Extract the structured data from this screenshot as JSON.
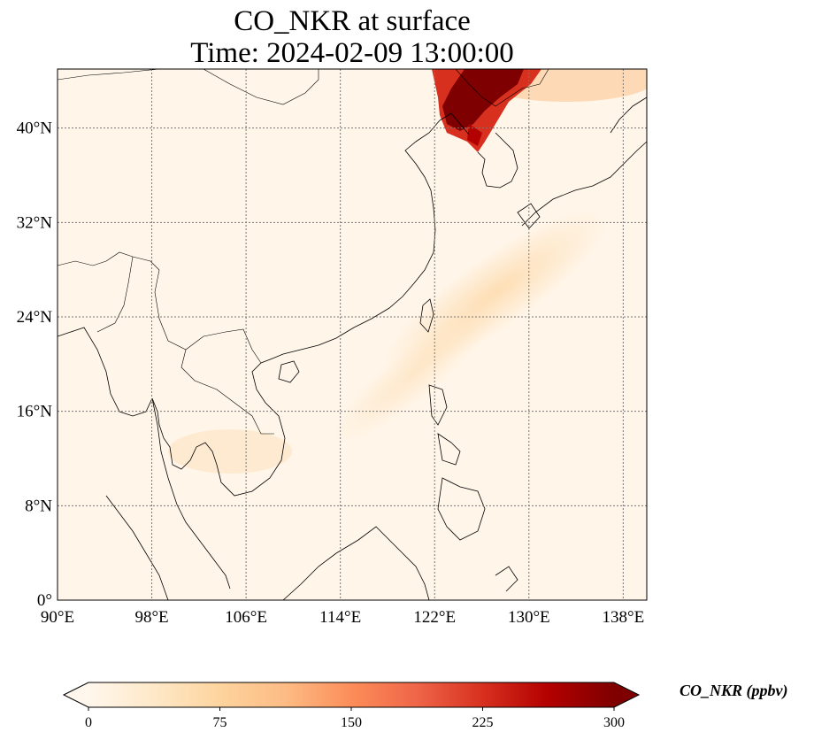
{
  "map": {
    "title_line1": "CO_NKR at surface",
    "title_line2": "Time: 2024-02-09 13:00:00",
    "variable": "CO_NKR",
    "level": "surface",
    "time": "2024-02-09 13:00:00",
    "extent": {
      "lon_min": 90,
      "lon_max": 140,
      "lat_min": 0,
      "lat_max": 45
    },
    "lon_ticks": [
      {
        "value": 90,
        "label": "90°E"
      },
      {
        "value": 98,
        "label": "98°E"
      },
      {
        "value": 106,
        "label": "106°E"
      },
      {
        "value": 114,
        "label": "114°E"
      },
      {
        "value": 122,
        "label": "122°E"
      },
      {
        "value": 130,
        "label": "130°E"
      },
      {
        "value": 138,
        "label": "138°E"
      }
    ],
    "lat_ticks": [
      {
        "value": 0,
        "label": "0°"
      },
      {
        "value": 8,
        "label": "8°N"
      },
      {
        "value": 16,
        "label": "16°N"
      },
      {
        "value": 24,
        "label": "24°N"
      },
      {
        "value": 32,
        "label": "32°N"
      },
      {
        "value": 40,
        "label": "40°N"
      }
    ],
    "gridlines": true,
    "colormap": "OrRd",
    "background_color": "#fff5e8",
    "plume_color_high": "#7f0000",
    "plume_color_mid": "#d7301f",
    "coast_color": "#000000"
  },
  "colorbar": {
    "label": "CO_NKR (ppbv)",
    "vmin": 0,
    "vmax": 300,
    "extend": "both",
    "ticks": [
      {
        "value": 0,
        "label": "0"
      },
      {
        "value": 75,
        "label": "75"
      },
      {
        "value": 150,
        "label": "150"
      },
      {
        "value": 225,
        "label": "225"
      },
      {
        "value": 300,
        "label": "300"
      }
    ],
    "colors": [
      "#fff7ec",
      "#fee8c8",
      "#fdd49e",
      "#fdbb84",
      "#fc8d59",
      "#ef6548",
      "#d7301f",
      "#b30000",
      "#7f0000"
    ]
  }
}
